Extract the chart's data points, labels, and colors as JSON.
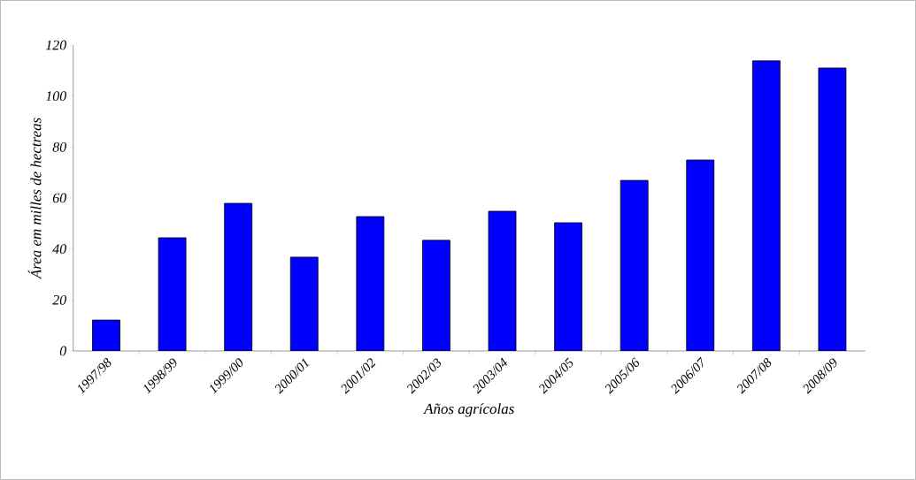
{
  "chart_data": {
    "type": "bar",
    "xlabel": "Años agrícolas",
    "ylabel": "Área em milles de hectreas",
    "categories": [
      "1997/98",
      "1998/99",
      "1999/00",
      "2000/01",
      "2001/02",
      "2002/03",
      "2003/04",
      "2004/05",
      "2005/06",
      "2006/07",
      "2007/08",
      "2008/09"
    ],
    "values": [
      12.1,
      44.4,
      57.9,
      36.8,
      52.7,
      43.4,
      54.8,
      50.3,
      66.9,
      74.9,
      113.8,
      111.0
    ],
    "color": "#0000ff",
    "ylim": [
      0,
      120
    ],
    "yticks": [
      0,
      20,
      40,
      60,
      80,
      100,
      120
    ],
    "grid": false
  }
}
